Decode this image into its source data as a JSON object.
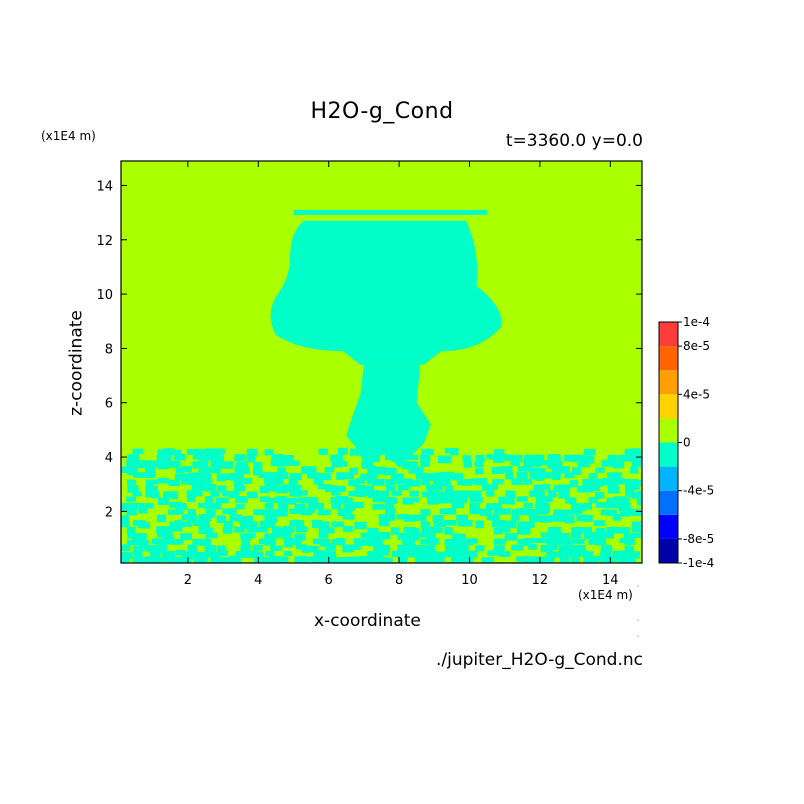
{
  "chart_data": {
    "type": "heatmap",
    "title": "H2O-g_Cond",
    "subtitle": "t=3360.0 y=0.0",
    "xlabel": "x-coordinate",
    "ylabel": "z-coordinate",
    "x_unit": "(x1E4 m)",
    "y_unit": "(x1E4 m)",
    "xlim": [
      0.1,
      14.9
    ],
    "ylim": [
      0.1,
      14.9
    ],
    "xticks": [
      2,
      4,
      6,
      8,
      10,
      12,
      14
    ],
    "yticks": [
      2,
      4,
      6,
      8,
      10,
      12,
      14
    ],
    "source_file": "./jupiter_H2O-g_Cond.nc",
    "colorbar": {
      "levels": [
        -0.0001,
        -8e-05,
        -6e-05,
        -4e-05,
        -2e-05,
        0,
        2e-05,
        4e-05,
        6e-05,
        8e-05,
        0.0001
      ],
      "colors": [
        "#0000a8",
        "#0000ff",
        "#0070ff",
        "#00b4ff",
        "#00ffc8",
        "#aaff00",
        "#ffd200",
        "#ffa000",
        "#ff6400",
        "#ff3c3c"
      ],
      "labels": [
        "1e-4",
        "8e-5",
        "4e-5",
        "0",
        "-4e-5",
        "-8e-5",
        "-1e-4"
      ],
      "label_values": [
        0.0001,
        8e-05,
        4e-05,
        0,
        -4e-05,
        -8e-05,
        -0.0001
      ]
    },
    "background_value_range": [
      0,
      2e-05
    ],
    "background_color": "#aaff00",
    "feature_value_range": [
      -2e-05,
      0
    ],
    "feature_color": "#00ffc8",
    "features": {
      "cloud_head": {
        "x_range": [
          4.2,
          10.9
        ],
        "z_range": [
          7.4,
          13.0
        ]
      },
      "anvil_top": {
        "x_range": [
          5.0,
          10.5
        ],
        "z": 13.0
      },
      "stem": {
        "x_range": [
          6.7,
          8.7
        ],
        "z_range": [
          3.6,
          7.4
        ]
      },
      "boundary_layer": {
        "z_range": [
          0.1,
          4.3
        ],
        "pattern": "mottled"
      }
    }
  }
}
